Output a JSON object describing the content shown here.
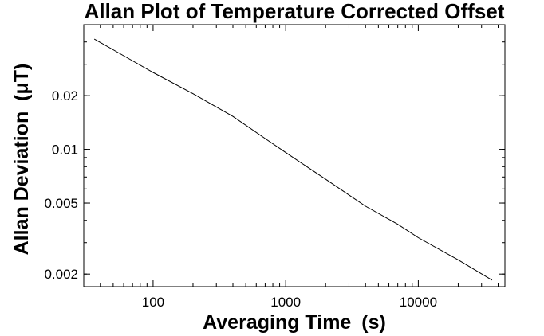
{
  "chart_data": {
    "type": "line",
    "title": "Allan Plot of Temperature Corrected Offset",
    "xlabel": "Averaging Time",
    "xlabel_unit": "(s)",
    "ylabel": "Allan Deviation",
    "ylabel_unit": "(μT)",
    "x_scale": "log",
    "y_scale": "log",
    "xlim": [
      30,
      45000
    ],
    "ylim": [
      0.0017,
      0.05
    ],
    "x_ticks": [
      100,
      1000,
      10000
    ],
    "x_tick_labels": [
      "100",
      "1000",
      "10000"
    ],
    "y_ticks": [
      0.002,
      0.005,
      0.01,
      0.02
    ],
    "y_tick_labels": [
      "0.002",
      "0.005",
      "0.01",
      "0.02"
    ],
    "grid": false,
    "series": [
      {
        "x": [
          36,
          60,
          100,
          200,
          400,
          700,
          1000,
          2000,
          4000,
          7000,
          10000,
          20000,
          36000
        ],
        "y": [
          0.0415,
          0.0335,
          0.027,
          0.0205,
          0.0153,
          0.0115,
          0.0096,
          0.0068,
          0.0048,
          0.0038,
          0.0032,
          0.0024,
          0.00185
        ]
      }
    ]
  }
}
